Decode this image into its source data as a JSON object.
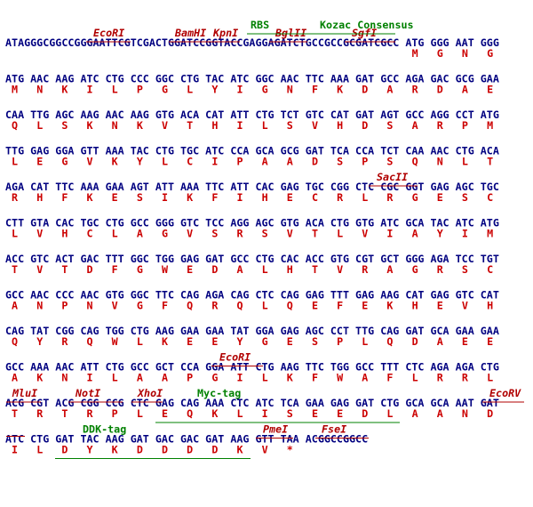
{
  "rows": [
    {
      "dna": "ATAGGGCGGCCGGGAATTCGTCGACTGGATCCGGTACCGAGGAGATCTGCCGCCGCGATCGCC ATG GGG AAT GGG",
      "protein": [
        "M",
        "G",
        "N",
        "G"
      ],
      "sites": [
        "EcoRI",
        "BamHI",
        "KpnI",
        "BglII",
        "SgfI"
      ],
      "tags": [
        "RBS",
        "Kozac Consensus"
      ]
    },
    {
      "dna": "ATG AAC AAG ATC CTG CCC GGC CTG TAC ATC GGC AAC TTC AAA GAT GCC AGA GAC GCG GAA",
      "protein": [
        "M",
        "N",
        "K",
        "I",
        "L",
        "P",
        "G",
        "L",
        "Y",
        "I",
        "G",
        "N",
        "F",
        "K",
        "D",
        "A",
        "R",
        "D",
        "A",
        "E"
      ]
    },
    {
      "dna": "CAA TTG AGC AAG AAC AAG GTG ACA CAT ATT CTG TCT GTC CAT GAT AGT GCC AGG CCT ATG",
      "protein": [
        "Q",
        "L",
        "S",
        "K",
        "N",
        "K",
        "V",
        "T",
        "H",
        "I",
        "L",
        "S",
        "V",
        "H",
        "D",
        "S",
        "A",
        "R",
        "P",
        "M"
      ]
    },
    {
      "dna": "TTG GAG GGA GTT AAA TAC CTG TGC ATC CCA GCA GCG GAT TCA CCA TCT CAA AAC CTG ACA",
      "protein": [
        "L",
        "E",
        "G",
        "V",
        "K",
        "Y",
        "L",
        "C",
        "I",
        "P",
        "A",
        "A",
        "D",
        "S",
        "P",
        "S",
        "Q",
        "N",
        "L",
        "T"
      ]
    },
    {
      "dna": "AGA CAT TTC AAA GAA AGT ATT AAA TTC ATT CAC GAG TGC CGG CTC CGC GGT GAG AGC TGC",
      "protein": [
        "R",
        "H",
        "F",
        "K",
        "E",
        "S",
        "I",
        "K",
        "F",
        "I",
        "H",
        "E",
        "C",
        "R",
        "L",
        "R",
        "G",
        "E",
        "S",
        "C"
      ],
      "sites": [
        "SacII"
      ]
    },
    {
      "dna": "CTT GTA CAC TGC CTG GCC GGG GTC TCC AGG AGC GTG ACA CTG GTG ATC GCA TAC ATC ATG",
      "protein": [
        "L",
        "V",
        "H",
        "C",
        "L",
        "A",
        "G",
        "V",
        "S",
        "R",
        "S",
        "V",
        "T",
        "L",
        "V",
        "I",
        "A",
        "Y",
        "I",
        "M"
      ]
    },
    {
      "dna": "ACC GTC ACT GAC TTT GGC TGG GAG GAT GCC CTG CAC ACC GTG CGT GCT GGG AGA TCC TGT",
      "protein": [
        "T",
        "V",
        "T",
        "D",
        "F",
        "G",
        "W",
        "E",
        "D",
        "A",
        "L",
        "H",
        "T",
        "V",
        "R",
        "A",
        "G",
        "R",
        "S",
        "C"
      ]
    },
    {
      "dna": "GCC AAC CCC AAC GTG GGC TTC CAG AGA CAG CTC CAG GAG TTT GAG AAG CAT GAG GTC CAT",
      "protein": [
        "A",
        "N",
        "P",
        "N",
        "V",
        "G",
        "F",
        "Q",
        "R",
        "Q",
        "L",
        "Q",
        "E",
        "F",
        "E",
        "K",
        "H",
        "E",
        "V",
        "H"
      ]
    },
    {
      "dna": "CAG TAT CGG CAG TGG CTG AAG GAA GAA TAT GGA GAG AGC CCT TTG CAG GAT GCA GAA GAA",
      "protein": [
        "Q",
        "Y",
        "R",
        "Q",
        "W",
        "L",
        "K",
        "E",
        "E",
        "Y",
        "G",
        "E",
        "S",
        "P",
        "L",
        "Q",
        "D",
        "A",
        "E",
        "E"
      ]
    },
    {
      "dna": "GCC AAA AAC ATT CTG GCC GCT CCA GGA ATT CTG AAG TTC TGG GCC TTT CTC AGA AGA CTG",
      "protein": [
        "A",
        "K",
        "N",
        "I",
        "L",
        "A",
        "A",
        "P",
        "G",
        "I",
        "L",
        "K",
        "F",
        "W",
        "A",
        "F",
        "L",
        "R",
        "R",
        "L"
      ],
      "sites": [
        "EcoRI"
      ]
    },
    {
      "dna": "ACG CGT ACG CGG CCG CTC GAG CAG AAA CTC ATC TCA GAA GAG GAT CTG GCA GCA AAT GAT",
      "protein": [
        "T",
        "R",
        "T",
        "R",
        "P",
        "L",
        "E",
        "Q",
        "K",
        "L",
        "I",
        "S",
        "E",
        "E",
        "D",
        "L",
        "A",
        "A",
        "N",
        "D"
      ],
      "sites": [
        "MluI",
        "NotI",
        "XhoI",
        "EcoRV"
      ],
      "tags": [
        "Myc-tag"
      ]
    },
    {
      "dna": "ATC CTG GAT TAC AAG GAT GAC GAC GAT AAG GTT TAA ACGGCCGGCC",
      "protein": [
        "I",
        "L",
        "D",
        "Y",
        "K",
        "D",
        "D",
        "D",
        "D",
        "K",
        "V",
        "*"
      ],
      "sites": [
        "PmeI",
        "FseI"
      ],
      "tags": [
        "DDK-tag"
      ]
    }
  ]
}
